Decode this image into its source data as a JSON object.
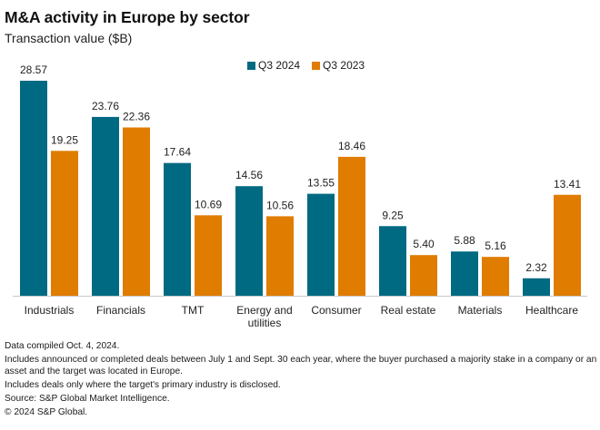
{
  "title": "M&A activity in Europe by sector",
  "subtitle": "Transaction value ($B)",
  "colors": {
    "q3_2024": "#006a82",
    "q3_2023": "#e07c00",
    "axis": "#c8c8c8"
  },
  "chart_data": {
    "type": "bar",
    "title": "M&A activity in Europe by sector",
    "subtitle": "Transaction value ($B)",
    "xlabel": "",
    "ylabel": "Transaction value ($B)",
    "ylim": [
      0,
      30
    ],
    "grid": false,
    "legend_position": "top-center",
    "categories": [
      "Industrials",
      "Financials",
      "TMT",
      "Energy and utilities",
      "Consumer",
      "Real estate",
      "Materials",
      "Healthcare"
    ],
    "category_lines": [
      [
        "Industrials"
      ],
      [
        "Financials"
      ],
      [
        "TMT"
      ],
      [
        "Energy and",
        "utilities"
      ],
      [
        "Consumer"
      ],
      [
        "Real estate"
      ],
      [
        "Materials"
      ],
      [
        "Healthcare"
      ]
    ],
    "series": [
      {
        "name": "Q3 2024",
        "color": "#006a82",
        "values": [
          28.57,
          23.76,
          17.64,
          14.56,
          13.55,
          9.25,
          5.88,
          2.32
        ],
        "labels": [
          "28.57",
          "23.76",
          "17.64",
          "14.56",
          "13.55",
          "9.25",
          "5.88",
          "2.32"
        ]
      },
      {
        "name": "Q3 2023",
        "color": "#e07c00",
        "values": [
          19.25,
          22.36,
          10.69,
          10.56,
          18.46,
          5.4,
          5.16,
          13.41
        ],
        "labels": [
          "19.25",
          "22.36",
          "10.69",
          "10.56",
          "18.46",
          "5.40",
          "5.16",
          "13.41"
        ]
      }
    ]
  },
  "notes": [
    "Data compiled Oct. 4, 2024.",
    "Includes announced or completed deals between July 1 and Sept. 30 each year, where the buyer purchased a majority stake in a company or an asset and the target was located in Europe.",
    "Includes deals only where the target's primary industry is disclosed.",
    "Source: S&P Global Market Intelligence.",
    "© 2024 S&P Global."
  ]
}
